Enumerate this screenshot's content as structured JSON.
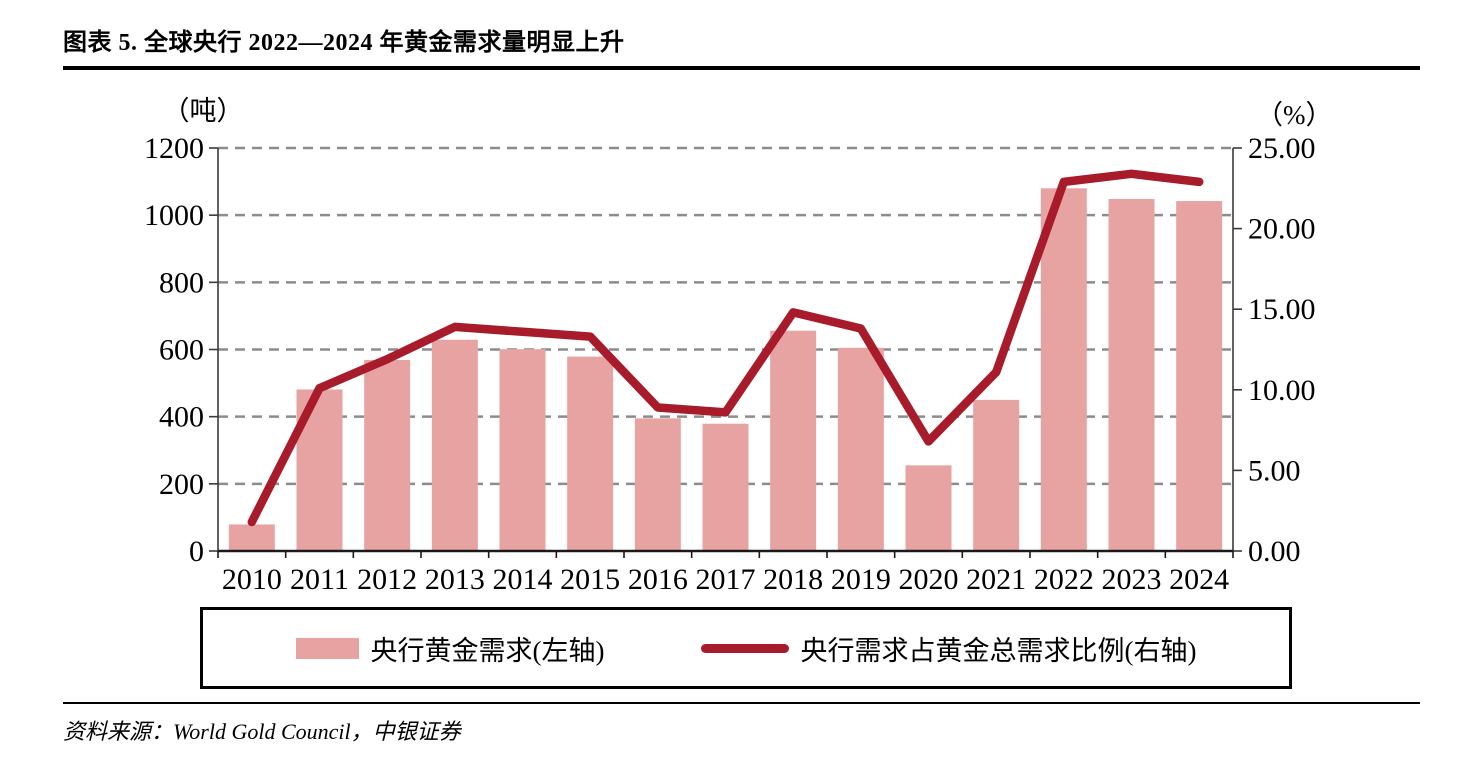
{
  "title": "图表 5. 全球央行 2022—2024 年黄金需求量明显上升",
  "source": "资料来源：World Gold Council，中银证券",
  "legend": {
    "bar_label": "央行黄金需求(左轴)",
    "line_label": "央行需求占黄金总需求比例(右轴)"
  },
  "colors": {
    "bar": "#E7A3A2",
    "line": "#A81B2B",
    "grid": "#8C8C8C",
    "axis": "#3A3A3A",
    "baseline": "#1A1A1A"
  },
  "chart_data": {
    "type": "bar",
    "subtype": "combo-bar-line-dual-axis",
    "categories": [
      "2010",
      "2011",
      "2012",
      "2013",
      "2014",
      "2015",
      "2016",
      "2017",
      "2018",
      "2019",
      "2020",
      "2021",
      "2022",
      "2023",
      "2024"
    ],
    "series": [
      {
        "name": "央行黄金需求(左轴)",
        "type": "bar",
        "axis": "left",
        "unit": "吨",
        "values": [
          79,
          481,
          569,
          629,
          601,
          579,
          395,
          379,
          656,
          605,
          255,
          450,
          1080,
          1048,
          1042
        ]
      },
      {
        "name": "央行需求占黄金总需求比例(右轴)",
        "type": "line",
        "axis": "right",
        "unit": "%",
        "values": [
          1.8,
          10.1,
          11.9,
          13.9,
          13.6,
          13.3,
          8.9,
          8.6,
          14.8,
          13.8,
          6.8,
          11.1,
          22.9,
          23.4,
          22.9
        ]
      }
    ],
    "left_axis": {
      "label": "（吨）",
      "min": 0,
      "max": 1200,
      "step": 200
    },
    "right_axis": {
      "label": "（%）",
      "min": 0,
      "max": 25,
      "step": 5,
      "decimals": 2
    },
    "grid": "horizontal dashed",
    "legend_position": "bottom-boxed"
  }
}
